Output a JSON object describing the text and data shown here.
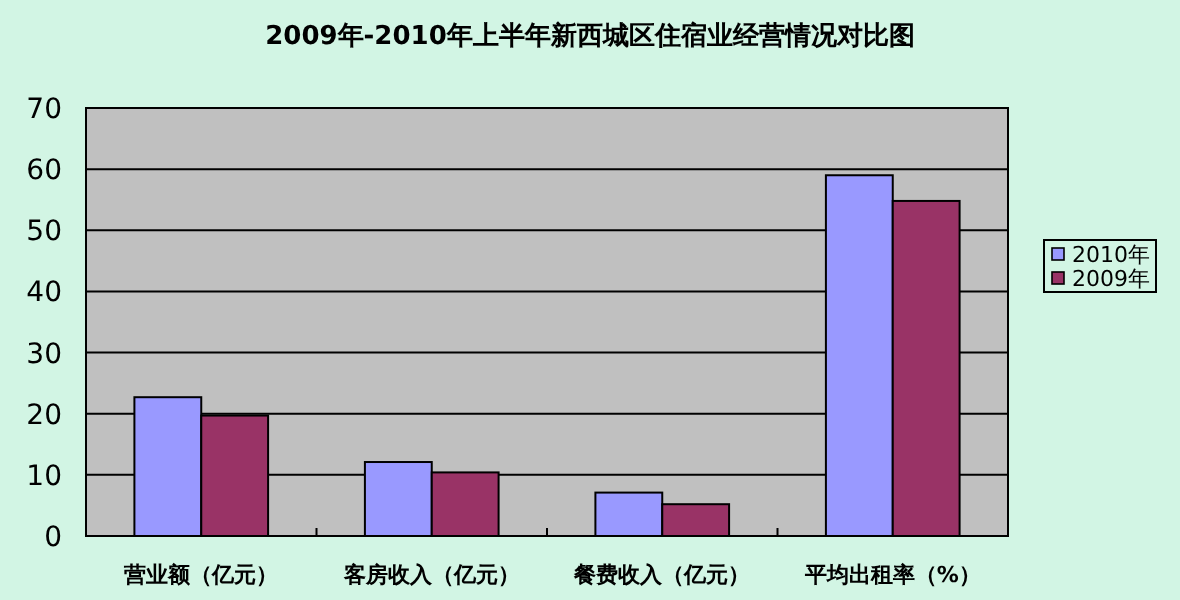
{
  "chart_data": {
    "type": "bar",
    "title": "2009年-2010年上半年新西城区住宿业经营情况对比图",
    "categories": [
      "营业额（亿元）",
      "客房收入（亿元）",
      "餐费收入（亿元）",
      "平均出租率（%）"
    ],
    "series": [
      {
        "name": "2010年",
        "color": "#9999ff",
        "values": [
          22.7,
          12.1,
          7.1,
          59.0
        ]
      },
      {
        "name": "2009年",
        "color": "#993366",
        "values": [
          19.7,
          10.4,
          5.2,
          54.8
        ]
      }
    ],
    "ylim": [
      0,
      70
    ],
    "yticks": [
      0,
      10,
      20,
      30,
      40,
      50,
      60,
      70
    ],
    "grid": "y",
    "legend": "right"
  }
}
